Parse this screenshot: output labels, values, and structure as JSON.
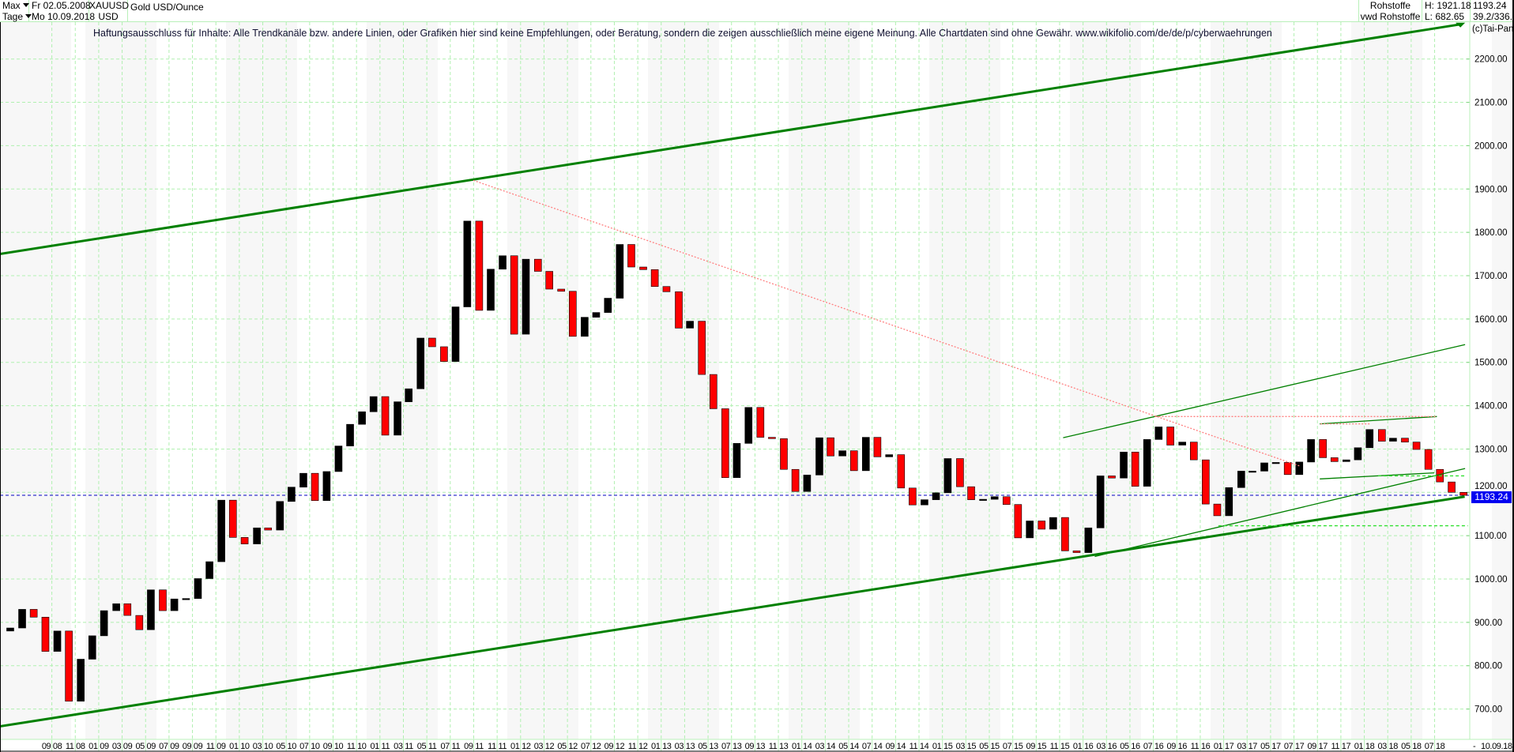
{
  "header": {
    "range": "Max",
    "interval": "Tage",
    "start_date": "Fr 02.05.2008",
    "end_date": "Mo 10.09.2018",
    "symbol": "XAUUSD",
    "currency": "USD",
    "instrument_name": "Gold USD/Ounce",
    "market": "Rohstoffe",
    "source": "vwd Rohstoffe",
    "high": "H: 1921.18",
    "low": "L: 682.65",
    "last": "1193.24",
    "extra": "39.2/336.2"
  },
  "disclaimer": "Haftungsausschluss für Inhalte: Alle Trendkanäle bzw. andere Linien, oder Grafiken hier sind keine Empfehlungen, oder Beratung, sondern die zeigen ausschließlich meine eigene Meinung. Alle Chartdaten sind ohne Gewähr.  www.wikifolio.com/de/de/p/cyberwaehrungen",
  "copyright": "(c)Tai-Pan",
  "chart_data": {
    "type": "candlestick",
    "title": "Gold USD/Ounce",
    "xlabel": "",
    "ylabel": "",
    "ylim": [
      640,
      2290
    ],
    "grid": true,
    "y_ticks": [
      "2200.00",
      "2100.00",
      "2000.00",
      "1900.00",
      "1800.00",
      "1700.00",
      "1600.00",
      "1500.00",
      "1400.00",
      "1300.00",
      "1200.00",
      "1100.00",
      "1000.00",
      "900.00",
      "800.00",
      "700.00"
    ],
    "x_tick_labels": [
      "09 08",
      "11 08",
      "01 09",
      "03 09",
      "05 09",
      "07 09",
      "09 09",
      "11 09",
      "01 10",
      "03 10",
      "05 10",
      "07 10",
      "09 10",
      "11 10",
      "01 11",
      "03 11",
      "05 11",
      "07 11",
      "09 11",
      "11 11",
      "01 12",
      "03 12",
      "05 12",
      "07 12",
      "09 12",
      "11 12",
      "01 13",
      "03 13",
      "05 13",
      "07 13",
      "09 13",
      "11 13",
      "01 14",
      "03 14",
      "05 14",
      "07 14",
      "09 14",
      "11 14",
      "01 15",
      "03 15",
      "05 15",
      "07 15",
      "09 15",
      "11 15",
      "01 16",
      "03 16",
      "05 16",
      "07 16",
      "09 16",
      "11 16",
      "01 17",
      "03 17",
      "05 17",
      "07 17",
      "09 17",
      "11 17",
      "01 18",
      "03 18",
      "05 18",
      "07 18"
    ],
    "x_end_labels": [
      "-",
      "10.09.18"
    ],
    "series": {
      "start_month": "2008-05",
      "first_open": 880,
      "monthly_close": [
        887,
        930,
        912,
        833,
        880,
        718,
        815,
        869,
        927,
        943,
        916,
        883,
        975,
        927,
        954,
        955,
        1001,
        1040,
        1182,
        1096,
        1081,
        1118,
        1113,
        1179,
        1212,
        1244,
        1181,
        1248,
        1307,
        1357,
        1386,
        1421,
        1332,
        1409,
        1439,
        1556,
        1536,
        1502,
        1628,
        1826,
        1620,
        1715,
        1746,
        1565,
        1738,
        1710,
        1669,
        1664,
        1560,
        1604,
        1615,
        1648,
        1772,
        1720,
        1714,
        1675,
        1663,
        1579,
        1595,
        1472,
        1393,
        1234,
        1313,
        1396,
        1327,
        1324,
        1253,
        1202,
        1240,
        1326,
        1284,
        1296,
        1250,
        1327,
        1282,
        1287,
        1210,
        1171,
        1183,
        1199,
        1278,
        1213,
        1183,
        1184,
        1190,
        1172,
        1095,
        1134,
        1115,
        1142,
        1065,
        1061,
        1118,
        1238,
        1233,
        1293,
        1214,
        1322,
        1351,
        1309,
        1316,
        1275,
        1173,
        1146,
        1211,
        1249,
        1249,
        1268,
        1269,
        1241,
        1270,
        1322,
        1280,
        1271,
        1275,
        1303,
        1345,
        1318,
        1325,
        1316,
        1299,
        1253,
        1224,
        1200,
        1193.24
      ],
      "up_color": "#000000",
      "down_color": "#ff0000"
    },
    "last_price": 1193.24,
    "trendlines": [
      {
        "name": "upper-channel",
        "from": [
          "2008-04-18",
          1750
        ],
        "to": [
          "2018-09-07",
          2280
        ],
        "color": "#008000",
        "style": "solid",
        "weight": "thick"
      },
      {
        "name": "lower-channel",
        "from": [
          "2008-04-18",
          660
        ],
        "to": [
          "2018-09-18",
          1190
        ],
        "color": "#008000",
        "style": "solid",
        "weight": "thick"
      },
      {
        "name": "inner-lower",
        "from": [
          "2016-02-01",
          1052
        ],
        "to": [
          "2018-09-19",
          1255
        ],
        "color": "#008000",
        "style": "solid",
        "weight": "thin"
      },
      {
        "name": "inner-upper",
        "from": [
          "2015-11-10",
          1326
        ],
        "to": [
          "2018-09-19",
          1541
        ],
        "color": "#008000",
        "style": "solid",
        "weight": "thin"
      },
      {
        "name": "downtrend",
        "from": [
          "2011-08-31",
          1920
        ],
        "to": [
          "2017-07-19",
          1260
        ],
        "color": "#ff8080",
        "style": "dotted",
        "weight": "thin"
      },
      {
        "name": "top-2017-2018",
        "from": [
          "2017-09-07",
          1358
        ],
        "to": [
          "2018-07-07",
          1375
        ],
        "color": "#008000",
        "style": "solid",
        "weight": "thin"
      },
      {
        "name": "bottom-2017-2018",
        "from": [
          "2017-09-07",
          1231
        ],
        "to": [
          "2018-06-30",
          1245
        ],
        "color": "#008000",
        "style": "solid",
        "weight": "thin"
      },
      {
        "name": "resistance-1375",
        "from": [
          "2016-07-07",
          1375
        ],
        "to": [
          "2018-07-07",
          1375
        ],
        "color": "#ff8080",
        "style": "dotted",
        "weight": "thin"
      },
      {
        "name": "level-1358",
        "from": [
          "2017-09-09",
          1358
        ],
        "to": [
          "2018-01-19",
          1358
        ],
        "color": "#ff8080",
        "style": "dotted",
        "weight": "thin"
      },
      {
        "name": "level-1238",
        "from": [
          "2018-02-06",
          1238
        ],
        "to": [
          "2018-09-18",
          1238
        ],
        "color": "#30e030",
        "style": "dashed",
        "weight": "thin"
      },
      {
        "name": "level-1123",
        "from": [
          "2016-12-18",
          1123
        ],
        "to": [
          "2018-09-26",
          1123
        ],
        "color": "#30e030",
        "style": "dashed",
        "weight": "thin"
      }
    ]
  }
}
